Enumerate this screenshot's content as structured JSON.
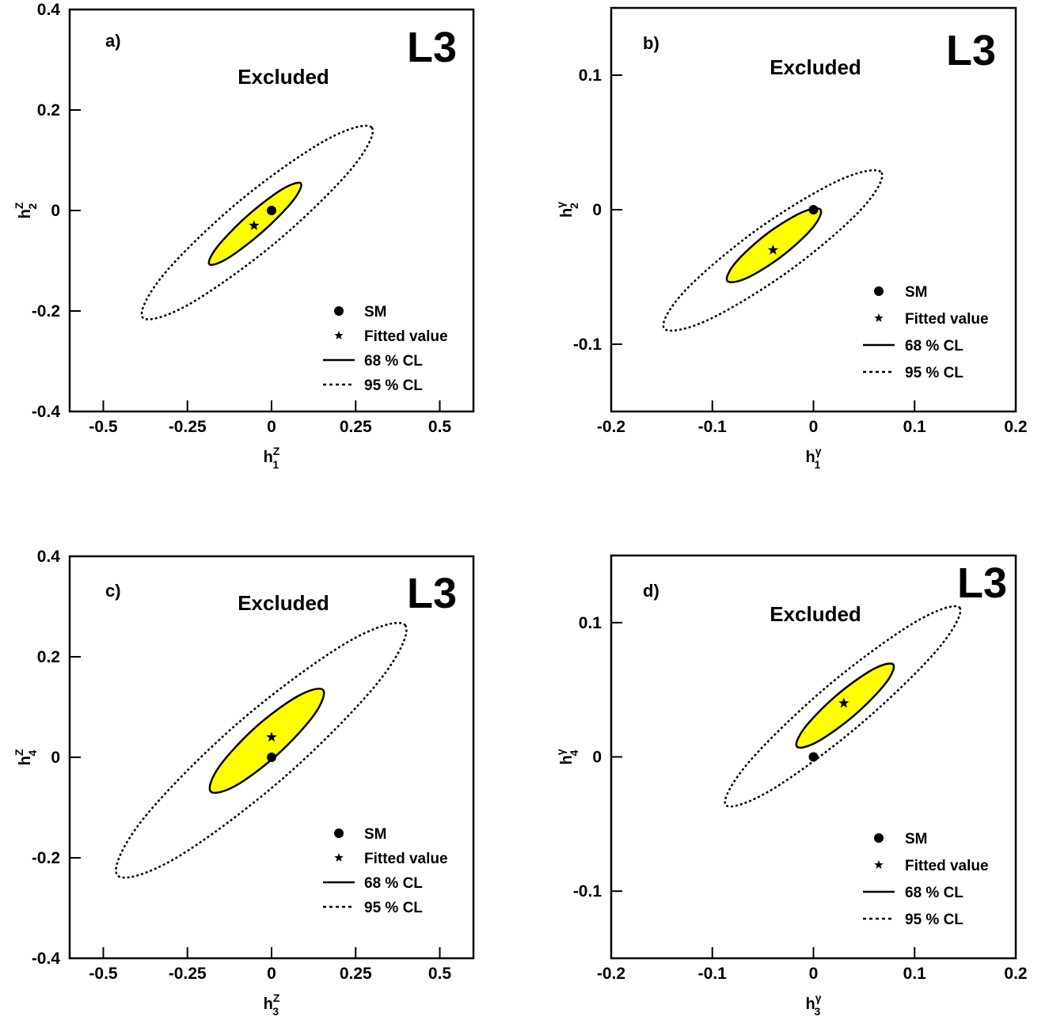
{
  "chart_data": [
    {
      "type": "contour",
      "label": "a)",
      "annotation": "Excluded",
      "logo": "L3",
      "xlabel": {
        "text": "h",
        "sup": "Z",
        "sub": "1"
      },
      "ylabel": {
        "text": "h",
        "sup": "Z",
        "sub": "2"
      },
      "xlim": [
        -0.6,
        0.6
      ],
      "ylim": [
        -0.4,
        0.4
      ],
      "xticks": [
        -0.5,
        -0.25,
        0,
        0.25,
        0.5
      ],
      "yticks": [
        -0.4,
        -0.2,
        0,
        0.2,
        0.4
      ],
      "legend": "lower right",
      "series": [
        {
          "name": "SM",
          "marker": "circle",
          "color": "#000000",
          "x": [
            0
          ],
          "values": [
            0
          ]
        },
        {
          "name": "Fitted value",
          "marker": "star",
          "color": "#000000",
          "x": [
            -0.052
          ],
          "values": [
            -0.03
          ]
        },
        {
          "name": "68 % CL",
          "line": "solid",
          "color": "#000000",
          "fill": "#ffff00",
          "x": [
            0.087,
            0.063,
            -0.028,
            -0.13,
            -0.185,
            -0.161,
            -0.071,
            0.031
          ],
          "values": [
            0.054,
            0.019,
            -0.043,
            -0.095,
            -0.107,
            -0.072,
            -0.01,
            0.042
          ]
        },
        {
          "name": "95 % CL",
          "line": "dotted",
          "color": "#000000",
          "x": [
            0.298,
            0.235,
            0.01,
            -0.246,
            -0.383,
            -0.32,
            -0.095,
            0.161
          ],
          "values": [
            0.165,
            0.081,
            -0.065,
            -0.187,
            -0.213,
            -0.127,
            0.019,
            0.14
          ]
        }
      ]
    },
    {
      "type": "contour",
      "label": "b)",
      "annotation": "Excluded",
      "logo": "L3",
      "xlabel": {
        "text": "h",
        "sup": "γ",
        "sub": "1"
      },
      "ylabel": {
        "text": "h",
        "sup": "γ",
        "sub": "2"
      },
      "xlim": [
        -0.2,
        0.2
      ],
      "ylim": [
        -0.15,
        0.15
      ],
      "xticks": [
        -0.2,
        -0.1,
        0,
        0.1,
        0.2
      ],
      "yticks": [
        -0.1,
        0,
        0.1
      ],
      "legend": "lower right",
      "series": [
        {
          "name": "SM",
          "marker": "circle",
          "color": "#000000",
          "x": [
            0
          ],
          "values": [
            0
          ]
        },
        {
          "name": "Fitted value",
          "marker": "star",
          "color": "#000000",
          "x": [
            -0.04
          ],
          "values": [
            -0.03
          ]
        },
        {
          "name": "68 % CL",
          "line": "solid",
          "color": "#000000",
          "fill": "#ffff00",
          "x": [
            0.007,
            -0.0008,
            -0.031,
            -0.0659,
            -0.0852,
            -0.0773,
            -0.0471,
            -0.0121
          ],
          "values": [
            0.0,
            -0.0134,
            -0.0344,
            -0.0508,
            -0.0529,
            -0.0396,
            -0.0185,
            -0.0022
          ]
        },
        {
          "name": "95 % CL",
          "line": "dotted",
          "color": "#000000",
          "x": [
            0.0672,
            0.0463,
            -0.0252,
            -0.1054,
            -0.1477,
            -0.1268,
            -0.0552,
            0.0251
          ],
          "values": [
            0.0276,
            -0.0005,
            -0.0461,
            -0.0824,
            -0.0882,
            -0.0601,
            -0.0145,
            0.0218
          ]
        }
      ]
    },
    {
      "type": "contour",
      "label": "c)",
      "annotation": "Excluded",
      "logo": "L3",
      "xlabel": {
        "text": "h",
        "sup": "Z",
        "sub": "3"
      },
      "ylabel": {
        "text": "h",
        "sup": "Z",
        "sub": "4"
      },
      "xlim": [
        -0.6,
        0.6
      ],
      "ylim": [
        -0.4,
        0.4
      ],
      "xticks": [
        -0.5,
        -0.25,
        0,
        0.25,
        0.5
      ],
      "yticks": [
        -0.4,
        -0.2,
        0,
        0.2,
        0.4
      ],
      "legend": "lower right",
      "series": [
        {
          "name": "SM",
          "marker": "circle",
          "color": "#000000",
          "x": [
            0
          ],
          "values": [
            0
          ]
        },
        {
          "name": "Fitted value",
          "marker": "star",
          "color": "#000000",
          "x": [
            0
          ],
          "values": [
            0.04
          ]
        },
        {
          "name": "68 % CL",
          "line": "solid",
          "color": "#000000",
          "fill": "#ffff00",
          "x": [
            0.153,
            0.128,
            0.02,
            -0.108,
            -0.181,
            -0.157,
            -0.049,
            0.079
          ],
          "values": [
            0.134,
            0.086,
            0.007,
            -0.057,
            -0.068,
            -0.02,
            0.059,
            0.122
          ]
        },
        {
          "name": "95 % CL",
          "line": "dotted",
          "color": "#000000",
          "x": [
            0.397,
            0.32,
            0.039,
            -0.283,
            -0.458,
            -0.383,
            -0.1,
            0.223
          ],
          "values": [
            0.263,
            0.152,
            -0.039,
            -0.2,
            -0.235,
            -0.124,
            0.068,
            0.228
          ]
        }
      ]
    },
    {
      "type": "contour",
      "label": "d)",
      "annotation": "Excluded",
      "logo": "L3",
      "xlabel": {
        "text": "h",
        "sup": "γ",
        "sub": "3"
      },
      "ylabel": {
        "text": "h",
        "sup": "γ",
        "sub": "4"
      },
      "xlim": [
        -0.2,
        0.2
      ],
      "ylim": [
        -0.15,
        0.15
      ],
      "xticks": [
        -0.2,
        -0.1,
        0,
        0.1,
        0.2
      ],
      "yticks": [
        -0.1,
        0,
        0.1
      ],
      "legend": "lower right",
      "series": [
        {
          "name": "SM",
          "marker": "circle",
          "color": "#000000",
          "x": [
            0
          ],
          "values": [
            0
          ]
        },
        {
          "name": "Fitted value",
          "marker": "star",
          "color": "#000000",
          "x": [
            0.03
          ],
          "values": [
            0.04
          ]
        },
        {
          "name": "68 % CL",
          "line": "solid",
          "color": "#000000",
          "fill": "#ffff00",
          "x": [
            0.0789,
            0.071,
            0.0398,
            0.0037,
            -0.0164,
            -0.0085,
            0.0227,
            0.0588
          ],
          "values": [
            0.0688,
            0.0545,
            0.0306,
            0.0112,
            0.0076,
            0.0219,
            0.0458,
            0.0652
          ]
        },
        {
          "name": "95 % CL",
          "line": "dotted",
          "color": "#000000",
          "x": [
            0.1445,
            0.122,
            0.045,
            -0.0414,
            -0.0867,
            -0.0642,
            0.0128,
            0.0992
          ],
          "values": [
            0.1112,
            0.0794,
            0.0234,
            -0.0245,
            -0.0359,
            -0.0042,
            0.052,
            0.0998
          ]
        }
      ]
    }
  ]
}
